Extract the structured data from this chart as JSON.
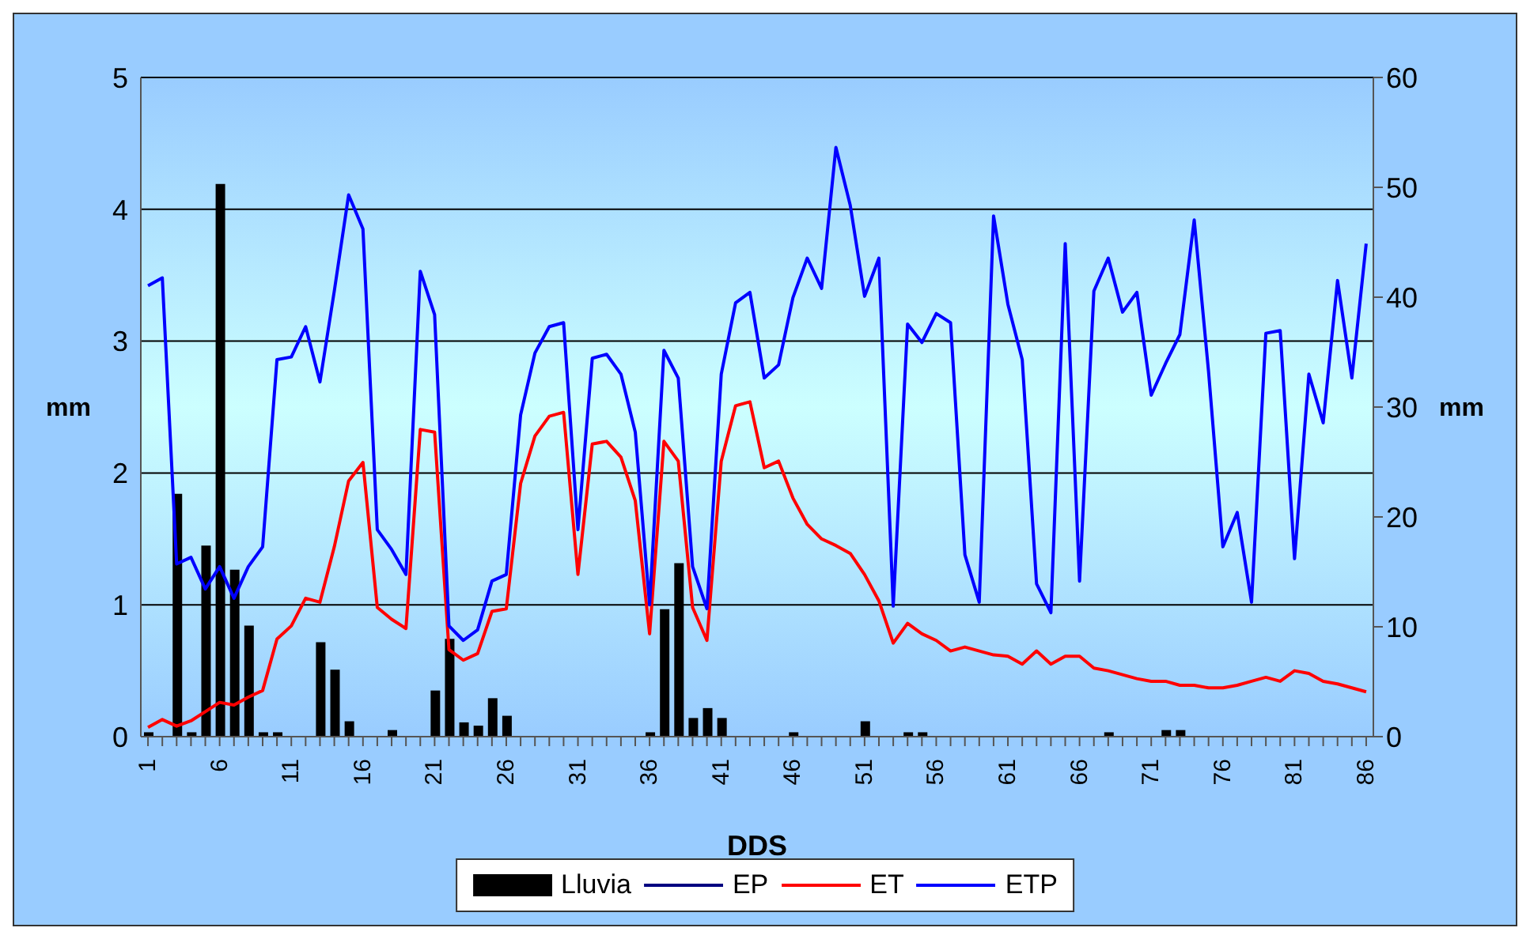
{
  "chart_data": {
    "type": "bar",
    "xlabel": "DDS",
    "ylabel": "mm",
    "y2label": "mm",
    "categories": [
      "1",
      null,
      null,
      null,
      null,
      "6",
      null,
      null,
      null,
      null,
      "11",
      null,
      null,
      null,
      null,
      "16",
      null,
      null,
      null,
      null,
      "21",
      null,
      null,
      null,
      null,
      "26",
      null,
      null,
      null,
      null,
      "31",
      null,
      null,
      null,
      null,
      "36",
      null,
      null,
      null,
      null,
      "41",
      null,
      null,
      null,
      null,
      "46",
      null,
      null,
      null,
      null,
      "51",
      null,
      null,
      null,
      null,
      "56",
      null,
      null,
      null,
      null,
      "61",
      null,
      null,
      null,
      null,
      "66",
      null,
      null,
      null,
      null,
      "71",
      null,
      null,
      null,
      null,
      "76",
      null,
      null,
      null,
      null,
      "81",
      null,
      null,
      null,
      null,
      "86"
    ],
    "ylim": [
      0,
      5
    ],
    "yticks": [
      0,
      1,
      2,
      3,
      4,
      5
    ],
    "y2lim": [
      0,
      60
    ],
    "y2ticks": [
      0,
      10,
      20,
      30,
      40,
      50,
      60
    ],
    "grid": "y",
    "legend": "bottom",
    "marker": "none",
    "series": [
      {
        "name": "Lluvia",
        "axis": "y2",
        "color": "#000000",
        "values": [
          0.4,
          null,
          22.1,
          0.4,
          17.4,
          50.3,
          15.2,
          10.1,
          0.4,
          0.4,
          null,
          null,
          8.6,
          6.1,
          1.4,
          null,
          null,
          0.6,
          null,
          null,
          4.2,
          8.9,
          1.3,
          1.0,
          3.5,
          1.9,
          null,
          null,
          null,
          null,
          null,
          null,
          null,
          null,
          null,
          0.4,
          11.6,
          15.8,
          1.7,
          2.6,
          1.7,
          null,
          null,
          null,
          null,
          0.4,
          null,
          null,
          null,
          null,
          1.4,
          null,
          null,
          0.4,
          0.4,
          null,
          null,
          null,
          null,
          null,
          null,
          null,
          null,
          null,
          null,
          null,
          null,
          0.4,
          null,
          null,
          null,
          0.6,
          0.6,
          null,
          null,
          null,
          null,
          null,
          null,
          null,
          null,
          null,
          null,
          null,
          null,
          null
        ]
      },
      {
        "name": "EP",
        "type": "line",
        "color": "#000080",
        "values": [
          null,
          null,
          null,
          null,
          null,
          null,
          null,
          null,
          null,
          null,
          null,
          null,
          null,
          null,
          null,
          null,
          null,
          null,
          null,
          null,
          null,
          null,
          null,
          null,
          null,
          null,
          null,
          null,
          null,
          null,
          null,
          null,
          null,
          null,
          null,
          null,
          null,
          null,
          null,
          null,
          null,
          null,
          null,
          null,
          null,
          null,
          null,
          null,
          null,
          null,
          null,
          null,
          null,
          null,
          null,
          null,
          null,
          null,
          null,
          null,
          null,
          null,
          null,
          null,
          null,
          null,
          null,
          null,
          null,
          null,
          null,
          null,
          null,
          null,
          null,
          null,
          null,
          null,
          null,
          null,
          null,
          null,
          null,
          null,
          null,
          null
        ]
      },
      {
        "name": "ET",
        "type": "line",
        "color": "#ff0000",
        "values": [
          0.07,
          0.13,
          0.08,
          0.12,
          0.19,
          0.26,
          0.24,
          0.3,
          0.35,
          0.74,
          0.84,
          1.05,
          1.02,
          1.44,
          1.94,
          2.08,
          0.98,
          0.89,
          0.82,
          2.33,
          2.31,
          0.66,
          0.58,
          0.63,
          0.95,
          0.97,
          1.92,
          2.28,
          2.43,
          2.46,
          1.23,
          2.22,
          2.24,
          2.12,
          1.79,
          0.78,
          2.24,
          2.09,
          0.98,
          0.73,
          2.09,
          2.51,
          2.54,
          2.04,
          2.09,
          1.81,
          1.61,
          1.5,
          1.45,
          1.39,
          1.23,
          1.03,
          0.71,
          0.86,
          0.78,
          0.73,
          0.65,
          0.68,
          0.65,
          0.62,
          0.61,
          0.55,
          0.65,
          0.55,
          0.61,
          0.61,
          0.52,
          0.5,
          0.47,
          0.44,
          0.42,
          0.42,
          0.39,
          0.39,
          0.37,
          0.37,
          0.39,
          0.42,
          0.45,
          0.42,
          0.5,
          0.48,
          0.42,
          0.4,
          0.37,
          0.34
        ]
      },
      {
        "name": "ETP",
        "type": "line",
        "color": "#0000ff",
        "values": [
          3.42,
          3.48,
          1.31,
          1.36,
          1.12,
          1.29,
          1.05,
          1.29,
          1.44,
          2.86,
          2.88,
          3.11,
          2.69,
          3.38,
          4.11,
          3.85,
          1.57,
          1.42,
          1.23,
          3.53,
          3.2,
          0.84,
          0.73,
          0.81,
          1.18,
          1.23,
          2.44,
          2.91,
          3.11,
          3.14,
          1.57,
          2.87,
          2.9,
          2.75,
          2.31,
          1.0,
          2.93,
          2.72,
          1.29,
          0.97,
          2.75,
          3.29,
          3.37,
          2.72,
          2.82,
          3.33,
          3.63,
          3.4,
          4.47,
          4.03,
          3.34,
          3.63,
          0.99,
          3.13,
          2.99,
          3.21,
          3.14,
          1.38,
          1.02,
          3.95,
          3.28,
          2.86,
          1.16,
          0.94,
          3.74,
          1.18,
          3.38,
          3.63,
          3.22,
          3.37,
          2.59,
          2.83,
          3.05,
          3.92,
          2.77,
          1.44,
          1.7,
          1.02,
          3.06,
          3.08,
          1.35,
          2.75,
          2.38,
          3.46,
          2.72,
          3.74
        ]
      }
    ]
  }
}
